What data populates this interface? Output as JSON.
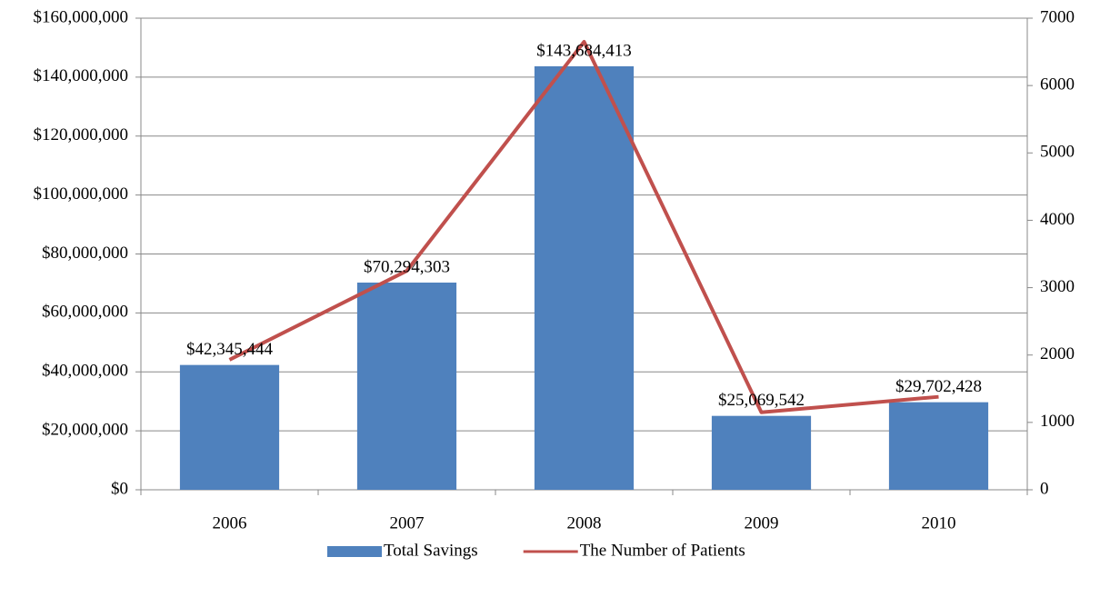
{
  "chart_data": {
    "type": "bar",
    "categories": [
      "2006",
      "2007",
      "2008",
      "2009",
      "2010"
    ],
    "series": [
      {
        "name": "Total Savings",
        "type": "bar",
        "color": "#4f81bd",
        "values": [
          42345444,
          70294303,
          143684413,
          25069542,
          29702428
        ],
        "value_labels": [
          "$42,345,444",
          "$70,294,303",
          "$143,684,413",
          "$25,069,542",
          "$29,702,428"
        ]
      },
      {
        "name": "The Number of Patients",
        "type": "line",
        "axis": "y2",
        "color": "#c0504d",
        "values": [
          1930,
          3250,
          6650,
          1150,
          1380
        ]
      }
    ],
    "ylim": [
      0,
      160000000
    ],
    "yticks": [
      {
        "value": 0,
        "label": "$0"
      },
      {
        "value": 20000000,
        "label": "$20,000,000"
      },
      {
        "value": 40000000,
        "label": "$40,000,000"
      },
      {
        "value": 60000000,
        "label": "$60,000,000"
      },
      {
        "value": 80000000,
        "label": "$80,000,000"
      },
      {
        "value": 100000000,
        "label": "$100,000,000"
      },
      {
        "value": 120000000,
        "label": "$120,000,000"
      },
      {
        "value": 140000000,
        "label": "$140,000,000"
      },
      {
        "value": 160000000,
        "label": "$160,000,000"
      }
    ],
    "y2lim": [
      0,
      7000
    ],
    "y2ticks": [
      0,
      1000,
      2000,
      3000,
      4000,
      5000,
      6000,
      7000
    ],
    "grid": true,
    "legend": "bottom"
  }
}
